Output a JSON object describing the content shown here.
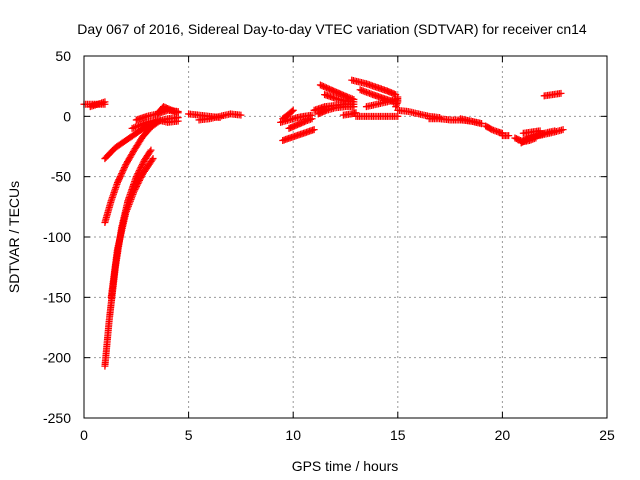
{
  "chart_data": {
    "type": "scatter",
    "title": "Day 067 of 2016, Sidereal Day-to-day VTEC variation (SDTVAR) for receiver cn14",
    "xlabel": "GPS time / hours",
    "ylabel": "SDTVAR / TECUs",
    "xlim": [
      0,
      25
    ],
    "ylim": [
      -250,
      50
    ],
    "xticks": [
      0,
      5,
      10,
      15,
      20,
      25
    ],
    "yticks": [
      -250,
      -200,
      -150,
      -100,
      -50,
      0,
      50
    ],
    "grid": true,
    "marker": "+",
    "series": [
      {
        "name": "SDTVAR",
        "color": "#ff0000",
        "segments": [
          [
            [
              0.0,
              10
            ],
            [
              1.0,
              10
            ]
          ],
          [
            [
              0.3,
              8
            ],
            [
              1.0,
              12
            ]
          ],
          [
            [
              1.0,
              -35
            ],
            [
              1.5,
              -26
            ],
            [
              2.0,
              -20
            ],
            [
              2.5,
              -14
            ],
            [
              3.0,
              -8
            ],
            [
              3.5,
              -4
            ],
            [
              4.0,
              -2
            ],
            [
              4.5,
              -1
            ]
          ],
          [
            [
              1.0,
              -88
            ],
            [
              1.3,
              -70
            ],
            [
              1.6,
              -55
            ],
            [
              2.0,
              -40
            ],
            [
              2.4,
              -28
            ],
            [
              2.8,
              -17
            ],
            [
              3.2,
              -9
            ],
            [
              3.6,
              -4
            ]
          ],
          [
            [
              1.0,
              -207
            ],
            [
              1.2,
              -170
            ],
            [
              1.5,
              -125
            ],
            [
              1.8,
              -92
            ],
            [
              2.1,
              -70
            ],
            [
              2.5,
              -50
            ],
            [
              2.9,
              -36
            ],
            [
              3.2,
              -28
            ]
          ],
          [
            [
              1.3,
              -150
            ],
            [
              1.6,
              -110
            ],
            [
              2.0,
              -80
            ],
            [
              2.4,
              -62
            ],
            [
              2.8,
              -48
            ],
            [
              3.3,
              -35
            ]
          ],
          [
            [
              2.3,
              -10
            ],
            [
              3.0,
              -5
            ],
            [
              3.5,
              -3
            ],
            [
              4.0,
              -5
            ],
            [
              4.5,
              -4
            ]
          ],
          [
            [
              2.5,
              -3
            ],
            [
              3.0,
              0
            ],
            [
              3.5,
              2
            ],
            [
              4.0,
              5
            ],
            [
              4.5,
              4
            ]
          ],
          [
            [
              3.5,
              2
            ],
            [
              3.8,
              8
            ],
            [
              4.2,
              5
            ],
            [
              4.5,
              3
            ]
          ],
          [
            [
              5.0,
              2
            ],
            [
              5.5,
              1
            ],
            [
              6.0,
              0
            ],
            [
              6.5,
              -1
            ]
          ],
          [
            [
              5.5,
              -3
            ],
            [
              6.0,
              -2
            ],
            [
              6.5,
              0
            ],
            [
              7.0,
              2
            ],
            [
              7.5,
              1
            ]
          ],
          [
            [
              9.4,
              -5
            ],
            [
              9.8,
              -3
            ],
            [
              10.2,
              -1
            ],
            [
              10.5,
              0
            ],
            [
              10.9,
              1
            ]
          ],
          [
            [
              9.5,
              -20
            ],
            [
              10.0,
              -17
            ],
            [
              10.5,
              -14
            ],
            [
              11.0,
              -11
            ]
          ],
          [
            [
              9.5,
              -2
            ],
            [
              9.8,
              2
            ],
            [
              10.0,
              5
            ]
          ],
          [
            [
              9.8,
              -10
            ],
            [
              10.2,
              -7
            ],
            [
              10.6,
              -4
            ],
            [
              10.9,
              -2
            ]
          ],
          [
            [
              11.0,
              5
            ],
            [
              11.5,
              8
            ],
            [
              12.0,
              9
            ],
            [
              12.5,
              10
            ],
            [
              12.9,
              10
            ]
          ],
          [
            [
              11.2,
              2
            ],
            [
              11.6,
              5
            ],
            [
              12.0,
              7
            ],
            [
              12.5,
              8
            ],
            [
              12.9,
              8
            ]
          ],
          [
            [
              11.3,
              26
            ],
            [
              11.8,
              22
            ],
            [
              12.2,
              19
            ],
            [
              12.6,
              16
            ],
            [
              12.9,
              14
            ]
          ],
          [
            [
              11.5,
              18
            ],
            [
              12.0,
              15
            ],
            [
              12.4,
              13
            ],
            [
              12.9,
              12
            ]
          ],
          [
            [
              12.4,
              1
            ],
            [
              12.8,
              2
            ],
            [
              13.0,
              3
            ]
          ],
          [
            [
              12.8,
              30
            ],
            [
              13.5,
              27
            ],
            [
              14.0,
              24
            ],
            [
              14.5,
              21
            ],
            [
              14.9,
              18
            ]
          ],
          [
            [
              13.2,
              22
            ],
            [
              13.8,
              18
            ],
            [
              14.3,
              15
            ],
            [
              14.8,
              12
            ]
          ],
          [
            [
              13.5,
              8
            ],
            [
              14.0,
              10
            ],
            [
              14.5,
              12
            ],
            [
              14.9,
              14
            ]
          ],
          [
            [
              13.0,
              0
            ],
            [
              14.0,
              0
            ],
            [
              15.0,
              0
            ]
          ],
          [
            [
              14.9,
              8
            ],
            [
              15.0,
              12
            ],
            [
              15.0,
              16
            ]
          ],
          [
            [
              15.0,
              5
            ],
            [
              15.5,
              4
            ],
            [
              16.0,
              2
            ],
            [
              16.5,
              0
            ],
            [
              17.0,
              -1
            ]
          ],
          [
            [
              16.5,
              -2
            ],
            [
              17.0,
              -2
            ],
            [
              17.5,
              -3
            ],
            [
              18.0,
              -3
            ],
            [
              18.5,
              -4
            ],
            [
              19.0,
              -6
            ]
          ],
          [
            [
              18.0,
              -2
            ],
            [
              18.5,
              -4
            ],
            [
              19.0,
              -6
            ]
          ],
          [
            [
              19.2,
              -8
            ],
            [
              19.5,
              -11
            ],
            [
              19.8,
              -13
            ],
            [
              20.0,
              -14
            ]
          ],
          [
            [
              20.0,
              -16
            ],
            [
              20.3,
              -16
            ]
          ],
          [
            [
              20.6,
              -18
            ],
            [
              21.0,
              -21
            ],
            [
              21.3,
              -20
            ],
            [
              21.6,
              -18
            ]
          ],
          [
            [
              20.9,
              -22
            ],
            [
              21.2,
              -19
            ],
            [
              21.5,
              -17
            ],
            [
              22.0,
              -15
            ],
            [
              22.5,
              -13
            ],
            [
              22.9,
              -11
            ]
          ],
          [
            [
              21.0,
              -20
            ],
            [
              21.5,
              -17
            ],
            [
              22.0,
              -14
            ],
            [
              22.5,
              -12
            ]
          ],
          [
            [
              21.0,
              -14
            ],
            [
              21.4,
              -13
            ],
            [
              21.8,
              -12
            ]
          ],
          [
            [
              22.0,
              17
            ],
            [
              22.4,
              18
            ],
            [
              22.8,
              19
            ]
          ]
        ]
      }
    ]
  }
}
